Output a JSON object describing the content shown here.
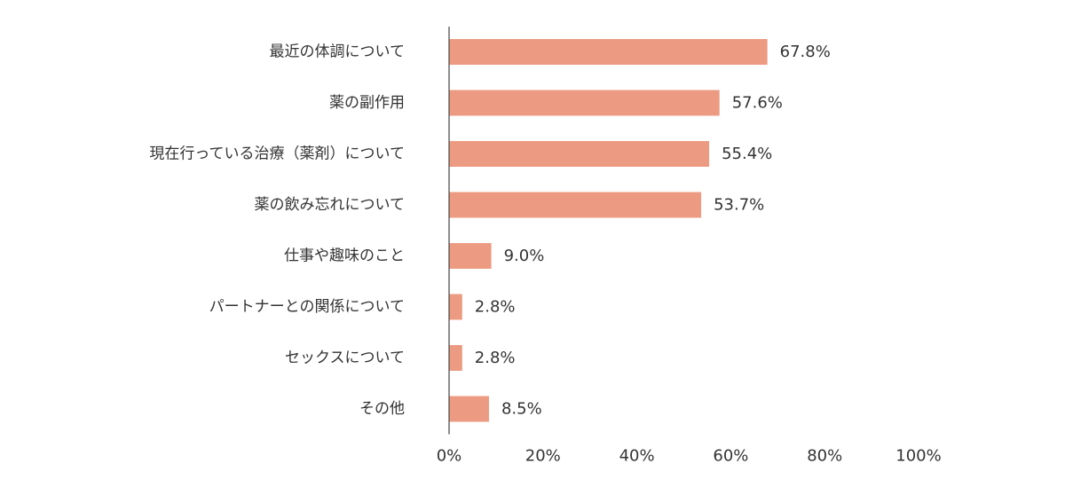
{
  "chart_data": {
    "type": "bar",
    "orientation": "horizontal",
    "categories": [
      "最近の体調について",
      "薬の副作用",
      "現在行っている治療（薬剤）について",
      "薬の飲み忘れについて",
      "仕事や趣味のこと",
      "パートナーとの関係について",
      "セックスについて",
      "その他"
    ],
    "values": [
      67.8,
      57.6,
      55.4,
      53.7,
      9.0,
      2.8,
      2.8,
      8.5
    ],
    "value_labels": [
      "67.8%",
      "57.6%",
      "55.4%",
      "53.7%",
      "9.0%",
      "2.8%",
      "2.8%",
      "8.5%"
    ],
    "xlim": [
      0,
      100
    ],
    "x_ticks": [
      0,
      20,
      40,
      60,
      80,
      100
    ],
    "x_tick_labels": [
      "0%",
      "20%",
      "40%",
      "60%",
      "80%",
      "100%"
    ],
    "grid": false,
    "legend": "none",
    "colors": {
      "bar": "#EC9B82",
      "axis": "#444444",
      "text": "#333333"
    }
  }
}
